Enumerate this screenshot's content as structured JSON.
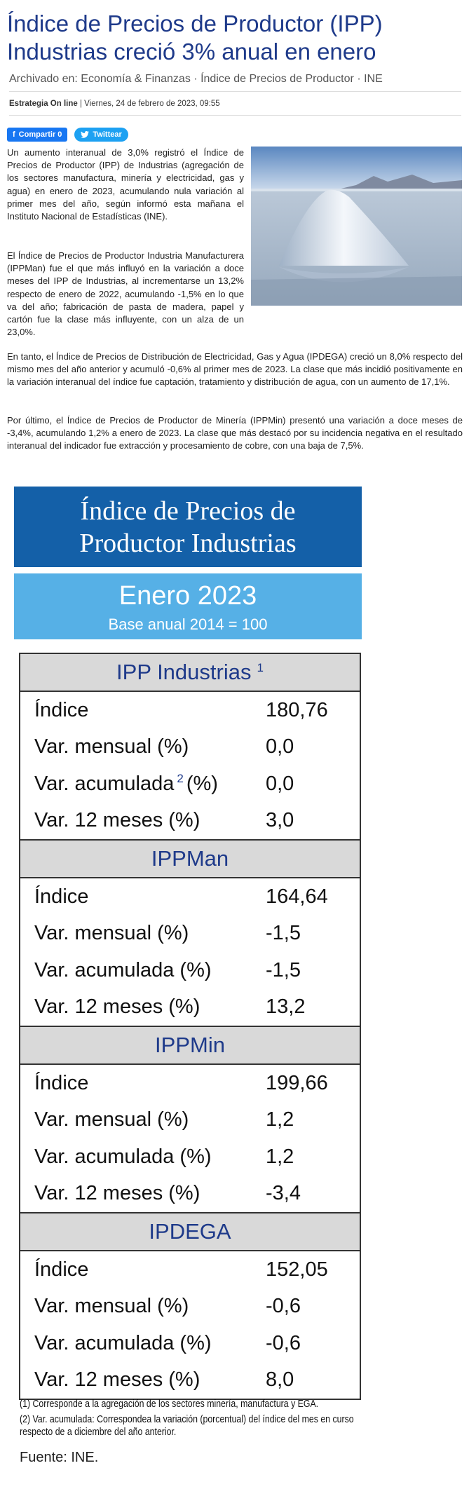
{
  "headline": "Índice de Precios de Productor (IPP) Industrias creció 3% anual en enero",
  "archive": {
    "prefix": "Archivado en:",
    "tags": [
      "Economía & Finanzas",
      "Índice de Precios de Productor",
      "INE"
    ],
    "separator": "·"
  },
  "byline": {
    "source": "Estrategia On line",
    "date": "Viernes, 24 de febrero de 2023, 09:55"
  },
  "share": {
    "facebook_label": "Compartir 0",
    "twitter_label": "Twittear"
  },
  "paragraphs": [
    "Un aumento interanual de 3,0% registró el Índice de Precios de Productor (IPP) de Industrias (agregación de los sectores manufactura, minería y electricidad, gas y agua) en enero de 2023, acumulando nula variación al primer mes del año, según informó esta mañana el Instituto Nacional de Estadísticas (INE).",
    "El Índice de Precios de Productor Industria Manufacturera (IPPMan) fue el que más influyó en la variación a doce meses del IPP de Industrias, al incrementarse un 13,2% respecto de enero de 2022, acumulando -1,5% en lo que va del año; fabricación de pasta de madera, papel y cartón fue la clase más influyente, con un alza de un 23,0%.",
    "En tanto, el Índice de Precios de Distribución de Electricidad, Gas y Agua (IPDEGA) creció un 8,0% respecto del mismo mes del año anterior y acumuló -0,6% al primer mes de 2023. La clase que más incidió positivamente en la variación interanual del índice fue captación, tratamiento y distribución de agua, con un aumento de 17,1%.",
    "Por último, el Índice de Precios de Productor de Minería (IPPMin) presentó una variación a doce meses de -3,4%, acumulando 1,2% a enero de 2023. La clase que más destacó por su incidencia negativa en el resultado interanual del indicador fue extracción y procesamiento de cobre, con una baja de 7,5%."
  ],
  "infographic": {
    "title_line1": "Índice de Precios de",
    "title_line2": "Productor Industrias",
    "period": "Enero 2023",
    "base": "Base anual 2014 = 100",
    "sections": [
      {
        "name": "IPP Industrias",
        "footnote": "1",
        "rows": [
          {
            "label": "Índice",
            "value": "180,76"
          },
          {
            "label": "Var. mensual (%)",
            "value": "0,0"
          },
          {
            "label": "Var. acumulada",
            "sup": "2",
            "suffix": "(%)",
            "value": "0,0"
          },
          {
            "label": "Var. 12 meses (%)",
            "value": "3,0"
          }
        ]
      },
      {
        "name": "IPPMan",
        "rows": [
          {
            "label": "Índice",
            "value": "164,64"
          },
          {
            "label": "Var. mensual (%)",
            "value": "-1,5"
          },
          {
            "label": "Var. acumulada (%)",
            "value": "-1,5"
          },
          {
            "label": "Var. 12 meses (%)",
            "value": "13,2"
          }
        ]
      },
      {
        "name": "IPPMin",
        "rows": [
          {
            "label": "Índice",
            "value": "199,66"
          },
          {
            "label": "Var. mensual (%)",
            "value": "1,2"
          },
          {
            "label": "Var. acumulada (%)",
            "value": "1,2"
          },
          {
            "label": "Var. 12 meses (%)",
            "value": "-3,4"
          }
        ]
      },
      {
        "name": "IPDEGA",
        "rows": [
          {
            "label": "Índice",
            "value": "152,05"
          },
          {
            "label": "Var. mensual (%)",
            "value": "-0,6"
          },
          {
            "label": "Var. acumulada (%)",
            "value": "-0,6"
          },
          {
            "label": "Var. 12 meses (%)",
            "value": "8,0"
          }
        ]
      }
    ],
    "notes": [
      "(1) Corresponde a la agregación de los sectores minería, manufactura y EGA.",
      "(2) Var. acumulada: Correspondea la variación (porcentual) del índice del mes en curso respecto de a diciembre del año anterior."
    ],
    "source": "Fuente: INE."
  }
}
